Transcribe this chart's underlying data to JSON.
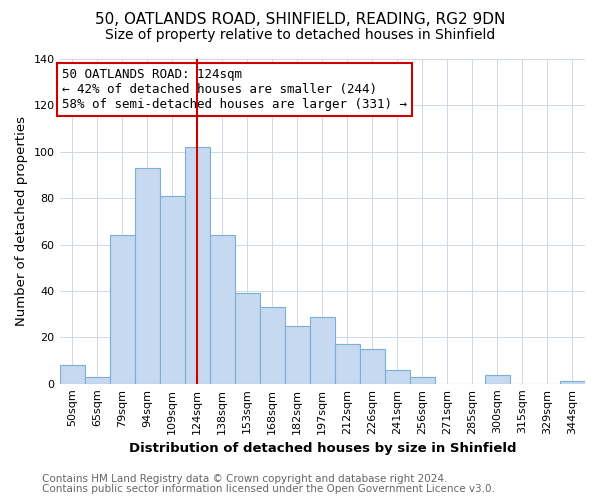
{
  "title": "50, OATLANDS ROAD, SHINFIELD, READING, RG2 9DN",
  "subtitle": "Size of property relative to detached houses in Shinfield",
  "xlabel": "Distribution of detached houses by size in Shinfield",
  "ylabel": "Number of detached properties",
  "bar_labels": [
    "50sqm",
    "65sqm",
    "79sqm",
    "94sqm",
    "109sqm",
    "124sqm",
    "138sqm",
    "153sqm",
    "168sqm",
    "182sqm",
    "197sqm",
    "212sqm",
    "226sqm",
    "241sqm",
    "256sqm",
    "271sqm",
    "285sqm",
    "300sqm",
    "315sqm",
    "329sqm",
    "344sqm"
  ],
  "bar_values": [
    8,
    3,
    64,
    93,
    81,
    102,
    64,
    39,
    33,
    25,
    29,
    17,
    15,
    6,
    3,
    0,
    0,
    4,
    0,
    0,
    1
  ],
  "bar_color": "#c6d9f0",
  "bar_edgecolor": "#7bafd4",
  "highlight_index": 5,
  "highlight_line_color": "#cc0000",
  "annotation_title": "50 OATLANDS ROAD: 124sqm",
  "annotation_line1": "← 42% of detached houses are smaller (244)",
  "annotation_line2": "58% of semi-detached houses are larger (331) →",
  "annotation_box_edgecolor": "#cc0000",
  "ylim": [
    0,
    140
  ],
  "yticks": [
    0,
    20,
    40,
    60,
    80,
    100,
    120,
    140
  ],
  "footer1": "Contains HM Land Registry data © Crown copyright and database right 2024.",
  "footer2": "Contains public sector information licensed under the Open Government Licence v3.0.",
  "title_fontsize": 11,
  "subtitle_fontsize": 10,
  "axis_label_fontsize": 9.5,
  "tick_fontsize": 8,
  "annotation_fontsize": 9,
  "footer_fontsize": 7.5
}
